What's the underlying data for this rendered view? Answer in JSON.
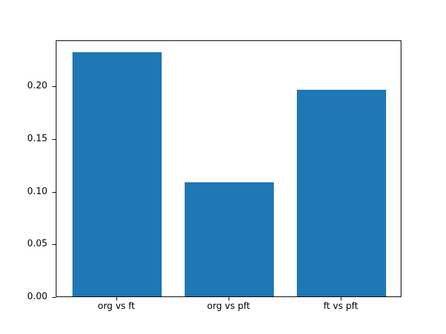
{
  "figure": {
    "background_color": "#ffffff",
    "bar_color": "#1f77b4",
    "spine_color": "#000000",
    "text_color": "#000000"
  },
  "chart_data": {
    "type": "bar",
    "title": "",
    "xlabel": "",
    "ylabel": "",
    "categories": [
      "org vs ft",
      "org vs pft",
      "ft vs pft"
    ],
    "values": [
      0.232,
      0.108,
      0.196
    ],
    "bar_width": 0.8,
    "xlim": [
      -0.54,
      2.54
    ],
    "ylim": [
      0,
      0.2436
    ],
    "yticks": [
      0.0,
      0.05,
      0.1,
      0.15,
      0.2
    ],
    "ytick_labels": [
      "0.00",
      "0.05",
      "0.10",
      "0.15",
      "0.20"
    ],
    "grid": false,
    "legend": "none"
  }
}
